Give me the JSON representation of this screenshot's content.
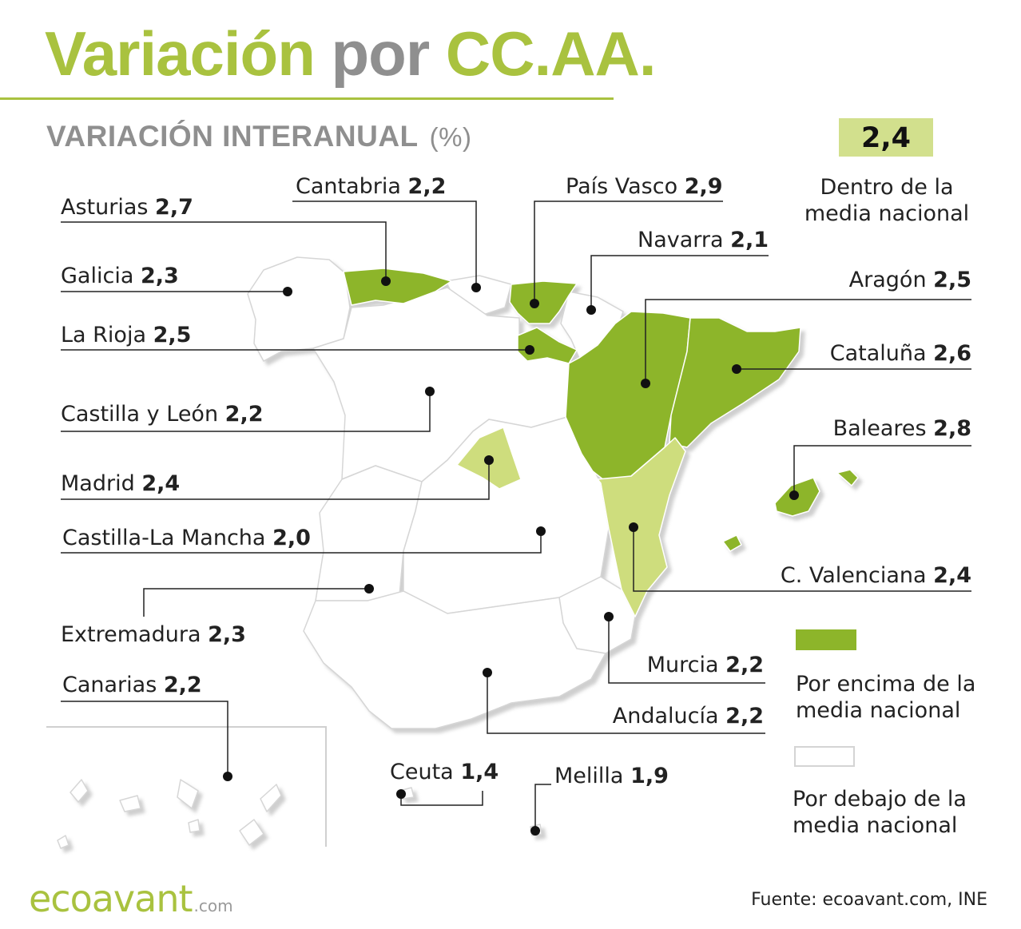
{
  "title": {
    "part1": "Variación",
    "part2": "por",
    "part3": "CC.AA."
  },
  "subtitle": {
    "main": "VARIACIÓN INTERANUAL",
    "unit": "(%)"
  },
  "national_average": {
    "value": "2,4",
    "label_line1": "Dentro de la",
    "label_line2": "media nacional"
  },
  "legend": {
    "above": {
      "line1": "Por encima de la",
      "line2": "media nacional",
      "color": "#8db52a"
    },
    "below": {
      "line1": "Por debajo de la",
      "line2": "media nacional",
      "color": "#ffffff"
    },
    "within_color": "#cedd7d"
  },
  "regions": {
    "asturias": {
      "name": "Asturias",
      "value": "2,7"
    },
    "cantabria": {
      "name": "Cantabria",
      "value": "2,2"
    },
    "pais_vasco": {
      "name": "País Vasco",
      "value": "2,9"
    },
    "navarra": {
      "name": "Navarra",
      "value": "2,1"
    },
    "galicia": {
      "name": "Galicia",
      "value": "2,3"
    },
    "aragon": {
      "name": "Aragón",
      "value": "2,5"
    },
    "la_rioja": {
      "name": "La Rioja",
      "value": "2,5"
    },
    "cataluna": {
      "name": "Cataluña",
      "value": "2,6"
    },
    "castilla_leon": {
      "name": "Castilla y León",
      "value": "2,2"
    },
    "baleares": {
      "name": "Baleares",
      "value": "2,8"
    },
    "madrid": {
      "name": "Madrid",
      "value": "2,4"
    },
    "castilla_la_mancha": {
      "name": "Castilla-La Mancha",
      "value": "2,0"
    },
    "c_valenciana": {
      "name": "C. Valenciana",
      "value": "2,4"
    },
    "extremadura": {
      "name": "Extremadura",
      "value": "2,3"
    },
    "murcia": {
      "name": "Murcia",
      "value": "2,2"
    },
    "canarias": {
      "name": "Canarias",
      "value": "2,2"
    },
    "andalucia": {
      "name": "Andalucía",
      "value": "2,2"
    },
    "ceuta": {
      "name": "Ceuta",
      "value": "1,4"
    },
    "melilla": {
      "name": "Melilla",
      "value": "1,9"
    }
  },
  "brand": {
    "logo": "ecoavant",
    "logo_suffix": ".com",
    "source": "Fuente: ecoavant.com, INE"
  }
}
